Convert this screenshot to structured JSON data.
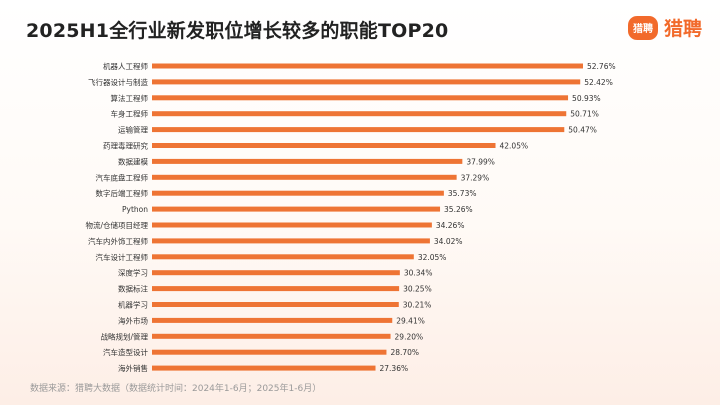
{
  "header": {
    "title": "2025H1全行业新发职位增长较多的职能TOP20",
    "logo_badge": "猎聘",
    "logo_text": "猎聘"
  },
  "footer": {
    "source": "数据来源：猎聘大数据（数据统计时间：2024年1-6月；2025年1-6月）"
  },
  "colors": {
    "bar": "#ee7434",
    "accent": "#f26a2b"
  },
  "chart_data": {
    "type": "bar",
    "orientation": "horizontal",
    "title": "2025H1全行业新发职位增长较多的职能TOP20",
    "categories": [
      "机器人工程师",
      "飞行器设计与制造",
      "算法工程师",
      "车身工程师",
      "运输管理",
      "药理毒理研究",
      "数据建模",
      "汽车底盘工程师",
      "数字后端工程师",
      "Python",
      "物流/仓储项目经理",
      "汽车内外饰工程师",
      "汽车设计工程师",
      "深度学习",
      "数据标注",
      "机器学习",
      "海外市场",
      "战略规划/管理",
      "汽车造型设计",
      "海外销售"
    ],
    "values": [
      52.76,
      52.42,
      50.93,
      50.71,
      50.47,
      42.05,
      37.99,
      37.29,
      35.73,
      35.26,
      34.26,
      34.02,
      32.05,
      30.34,
      30.25,
      30.21,
      29.41,
      29.2,
      28.7,
      27.36
    ],
    "labels": [
      "52.76%",
      "52.42%",
      "50.93%",
      "50.71%",
      "50.47%",
      "42.05%",
      "37.99%",
      "37.29%",
      "35.73%",
      "35.26%",
      "34.26%",
      "34.02%",
      "32.05%",
      "30.34%",
      "30.25%",
      "30.21%",
      "29.41%",
      "29.20%",
      "28.70%",
      "27.36%"
    ],
    "xlim": [
      0,
      52.76
    ],
    "grid": false,
    "legend": "none"
  }
}
